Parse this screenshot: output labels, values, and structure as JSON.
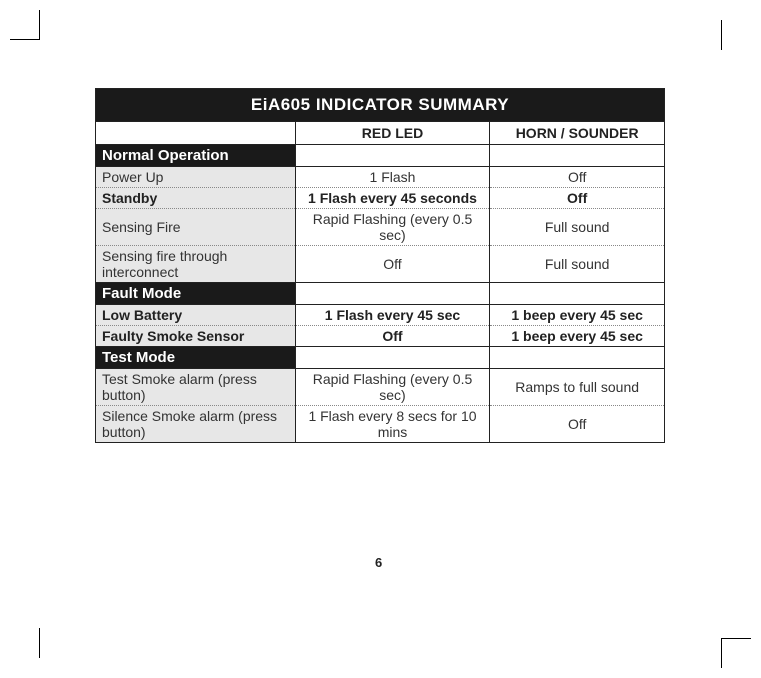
{
  "title": "EiA605 INDICATOR SUMMARY",
  "columns": [
    "",
    "RED LED",
    "HORN / SOUNDER"
  ],
  "sections": [
    {
      "name": "Normal Operation",
      "rows": [
        {
          "label": "Power Up",
          "led": "1 Flash",
          "horn": "Off",
          "bold": false
        },
        {
          "label": "Standby",
          "led": "1 Flash every 45 seconds",
          "horn": "Off",
          "bold": true
        },
        {
          "label": "Sensing Fire",
          "led": "Rapid Flashing (every 0.5 sec)",
          "horn": "Full sound",
          "bold": false
        },
        {
          "label": "Sensing fire through interconnect",
          "led": "Off",
          "horn": "Full sound",
          "bold": false
        }
      ]
    },
    {
      "name": "Fault Mode",
      "rows": [
        {
          "label": "Low Battery",
          "led": "1 Flash every 45 sec",
          "horn": "1 beep every 45 sec",
          "bold": true
        },
        {
          "label": "Faulty Smoke Sensor",
          "led": "Off",
          "horn": "1 beep every 45 sec",
          "bold": true
        }
      ]
    },
    {
      "name": "Test Mode",
      "rows": [
        {
          "label": "Test Smoke alarm (press button)",
          "led": "Rapid Flashing (every 0.5 sec)",
          "horn": "Ramps to full sound",
          "bold": false
        },
        {
          "label": "Silence Smoke alarm (press button)",
          "led": "1 Flash every 8 secs for 10 mins",
          "horn": "Off",
          "bold": false
        }
      ]
    }
  ],
  "page_number": "6",
  "colors": {
    "dark": "#1a1a1a",
    "shade": "#e7e7e7",
    "text": "#333333",
    "border": "#222222",
    "dotted": "#888888"
  }
}
